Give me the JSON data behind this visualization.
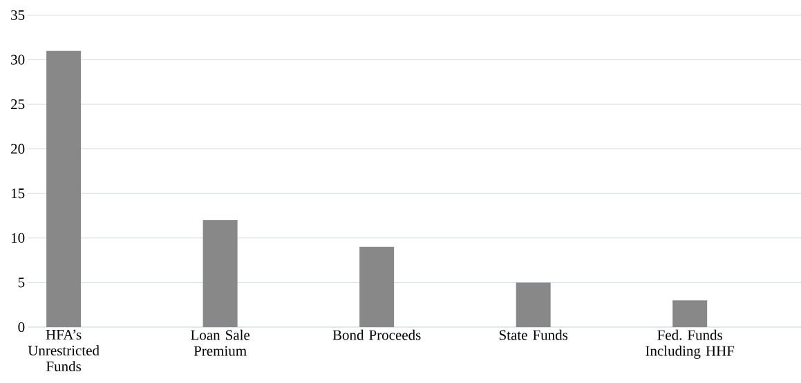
{
  "chart_data": {
    "type": "bar",
    "categories": [
      "HFA’s Unrestricted Funds",
      "Loan Sale Premium",
      "Bond Proceeds",
      "State Funds",
      "Fed. Funds Including HHF"
    ],
    "values": [
      31,
      12,
      9,
      5,
      3
    ],
    "color": "#888888",
    "ylim": [
      0,
      35
    ],
    "yticks": [
      0,
      5,
      10,
      15,
      20,
      25,
      30,
      35
    ],
    "grid": "y"
  }
}
